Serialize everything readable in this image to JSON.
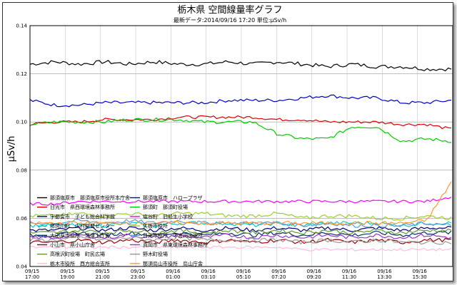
{
  "chart_data": {
    "type": "line",
    "title": "栃木県 空間線量率グラフ",
    "subtitle": "最新データ:2014/09/16 17:20 単位:μSv/h",
    "ylabel": "μSv/h",
    "xlabel": "",
    "ylim": [
      0.04,
      0.14
    ],
    "yticks": [
      "0.04",
      "0.06",
      "0.08",
      "0.10",
      "0.12",
      "0.14"
    ],
    "x_tick_labels": [
      [
        "09/15",
        "17:00"
      ],
      [
        "09/15",
        "19:00"
      ],
      [
        "09/15",
        "21:00"
      ],
      [
        "09/15",
        "23:00"
      ],
      [
        "09/16",
        "01:00"
      ],
      [
        "09/16",
        "03:10"
      ],
      [
        "09/16",
        "05:10"
      ],
      [
        "09/16",
        "07:20"
      ],
      [
        "09/16",
        "09:20"
      ],
      [
        "09/16",
        "11:30"
      ],
      [
        "09/16",
        "13:30"
      ],
      [
        "09/16",
        "15:30"
      ]
    ],
    "grid": true,
    "legend_position": "bottom",
    "series": [
      {
        "name": "那須塩原市　那須塩原市役所本庁舎",
        "color": "#000000",
        "start": 0.124,
        "end": 0.122,
        "amp": 0.0008,
        "values": [
          0.124,
          0.125,
          0.124,
          0.125,
          0.124,
          0.125,
          0.124,
          0.124,
          0.125,
          0.124,
          0.125,
          0.124,
          0.123,
          0.124,
          0.123,
          0.123,
          0.122,
          0.122
        ]
      },
      {
        "name": "那須塩原市　ハロープラザ",
        "color": "#0000cc",
        "start": 0.109,
        "end": 0.109,
        "amp": 0.0007,
        "values": [
          0.109,
          0.107,
          0.107,
          0.108,
          0.108,
          0.108,
          0.108,
          0.108,
          0.109,
          0.109,
          0.109,
          0.11,
          0.111,
          0.11,
          0.11,
          0.108,
          0.108,
          0.109
        ]
      },
      {
        "name": "日光市　県西環境森林事務所",
        "color": "#dd0000",
        "start": 0.099,
        "end": 0.097,
        "amp": 0.0006,
        "values": [
          0.099,
          0.1,
          0.1,
          0.101,
          0.101,
          0.101,
          0.102,
          0.102,
          0.102,
          0.102,
          0.101,
          0.101,
          0.1,
          0.1,
          0.1,
          0.099,
          0.099,
          0.097
        ]
      },
      {
        "name": "那須町　那須町役場",
        "color": "#00cc00",
        "start": 0.099,
        "end": 0.092,
        "amp": 0.0007,
        "values": [
          0.099,
          0.1,
          0.1,
          0.1,
          0.101,
          0.101,
          0.101,
          0.1,
          0.1,
          0.1,
          0.095,
          0.093,
          0.093,
          0.098,
          0.098,
          0.092,
          0.093,
          0.092
        ]
      },
      {
        "name": "宇都宮市　子ども総合科学館",
        "color": "#000080",
        "start": 0.055,
        "end": 0.056,
        "amp": 0.0008,
        "values": [
          0.055,
          0.055,
          0.056,
          0.055,
          0.056,
          0.055,
          0.056,
          0.055,
          0.056,
          0.055,
          0.056,
          0.055,
          0.056,
          0.055,
          0.056,
          0.055,
          0.056,
          0.056
        ]
      },
      {
        "name": "塩谷町　旧船生小学校",
        "color": "#ff00ff",
        "start": 0.066,
        "end": 0.069,
        "amp": 0.0006,
        "values": [
          0.066,
          0.066,
          0.067,
          0.067,
          0.067,
          0.067,
          0.067,
          0.067,
          0.067,
          0.067,
          0.067,
          0.067,
          0.067,
          0.067,
          0.067,
          0.067,
          0.067,
          0.069
        ]
      },
      {
        "name": "那珂川町　山村開発センター",
        "color": "#00cccc",
        "start": 0.057,
        "end": 0.058,
        "amp": 0.0008,
        "values": [
          0.057,
          0.057,
          0.057,
          0.057,
          0.058,
          0.057,
          0.058,
          0.058,
          0.058,
          0.057,
          0.058,
          0.057,
          0.058,
          0.058,
          0.058,
          0.057,
          0.058,
          0.058
        ]
      },
      {
        "name": "矢板市役所",
        "color": "#99cc33",
        "start": 0.061,
        "end": 0.06,
        "amp": 0.0008,
        "values": [
          0.061,
          0.061,
          0.062,
          0.061,
          0.062,
          0.061,
          0.062,
          0.062,
          0.061,
          0.061,
          0.062,
          0.06,
          0.061,
          0.061,
          0.06,
          0.06,
          0.061,
          0.06
        ]
      },
      {
        "name": "大田原市役所　湯津上庁舎",
        "color": "#003366",
        "start": 0.053,
        "end": 0.054,
        "amp": 0.0008,
        "values": [
          0.053,
          0.053,
          0.054,
          0.053,
          0.054,
          0.053,
          0.054,
          0.053,
          0.054,
          0.053,
          0.054,
          0.053,
          0.054,
          0.053,
          0.054,
          0.053,
          0.054,
          0.054
        ]
      },
      {
        "name": "日光市役所　中宮祠出張所",
        "color": "#6699cc",
        "start": 0.058,
        "end": 0.057,
        "amp": 0.0008,
        "values": [
          0.058,
          0.058,
          0.059,
          0.058,
          0.059,
          0.058,
          0.059,
          0.058,
          0.058,
          0.058,
          0.058,
          0.057,
          0.058,
          0.057,
          0.057,
          0.057,
          0.058,
          0.057
        ]
      },
      {
        "name": "小山市　県小山庁舎",
        "color": "#990000",
        "start": 0.05,
        "end": 0.051,
        "amp": 0.0008,
        "values": [
          0.05,
          0.05,
          0.051,
          0.05,
          0.051,
          0.05,
          0.051,
          0.05,
          0.051,
          0.05,
          0.051,
          0.05,
          0.051,
          0.05,
          0.051,
          0.05,
          0.051,
          0.051
        ]
      },
      {
        "name": "真岡市　県東環境森林事務所",
        "color": "#9933cc",
        "start": 0.052,
        "end": 0.052,
        "amp": 0.0008,
        "values": [
          0.052,
          0.052,
          0.053,
          0.052,
          0.053,
          0.052,
          0.053,
          0.052,
          0.053,
          0.052,
          0.053,
          0.052,
          0.053,
          0.052,
          0.053,
          0.052,
          0.053,
          0.052
        ]
      },
      {
        "name": "高根沢町役場　町民広場",
        "color": "#669933",
        "start": 0.054,
        "end": 0.055,
        "amp": 0.0008,
        "values": [
          0.054,
          0.054,
          0.055,
          0.054,
          0.055,
          0.054,
          0.055,
          0.054,
          0.055,
          0.054,
          0.055,
          0.054,
          0.055,
          0.054,
          0.055,
          0.054,
          0.055,
          0.055
        ]
      },
      {
        "name": "野木町役場",
        "color": "#999999",
        "start": 0.051,
        "end": 0.05,
        "amp": 0.0008,
        "values": [
          0.051,
          0.051,
          0.052,
          0.051,
          0.052,
          0.051,
          0.052,
          0.051,
          0.051,
          0.051,
          0.051,
          0.05,
          0.051,
          0.05,
          0.051,
          0.05,
          0.05,
          0.05
        ]
      },
      {
        "name": "栃木市役所　西方総合支所",
        "color": "#ffbbdd",
        "start": 0.048,
        "end": 0.047,
        "amp": 0.0006,
        "values": [
          0.048,
          0.048,
          0.048,
          0.048,
          0.048,
          0.048,
          0.048,
          0.048,
          0.048,
          0.048,
          0.048,
          0.047,
          0.047,
          0.047,
          0.047,
          0.047,
          0.047,
          0.047
        ]
      },
      {
        "name": "那須烏山市役所　烏山庁舎",
        "color": "#ff9933",
        "start": 0.058,
        "end": 0.075,
        "amp": 0.0008,
        "values": [
          0.058,
          0.058,
          0.058,
          0.058,
          0.058,
          0.058,
          0.058,
          0.058,
          0.058,
          0.058,
          0.058,
          0.058,
          0.058,
          0.058,
          0.058,
          0.058,
          0.059,
          0.075
        ]
      }
    ]
  }
}
